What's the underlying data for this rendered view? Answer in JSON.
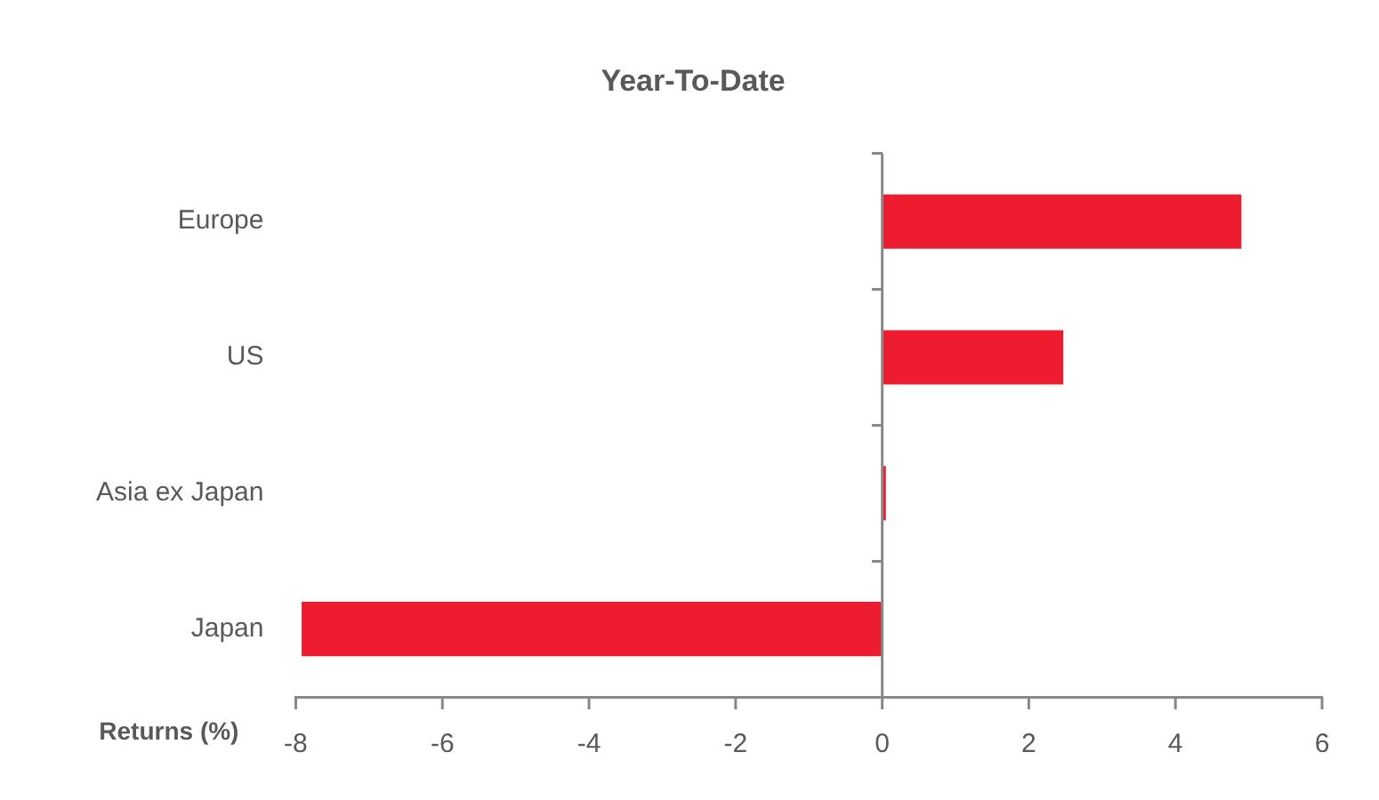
{
  "chart_data": {
    "type": "bar",
    "orientation": "horizontal",
    "title": "Year-To-Date",
    "xlabel": "Returns (%)",
    "categories": [
      "Europe",
      "US",
      "Asia ex Japan",
      "Japan"
    ],
    "values": [
      4.9,
      2.47,
      0.05,
      -7.92
    ],
    "color": "#ed1c2e",
    "xlim": [
      -8,
      6
    ],
    "xticks": [
      -8,
      -6,
      -4,
      -2,
      0,
      2,
      4,
      6
    ],
    "grid": false,
    "legend": false,
    "ref_lines": [
      {
        "axis": "x",
        "value": 0,
        "color": "#888888"
      }
    ]
  }
}
